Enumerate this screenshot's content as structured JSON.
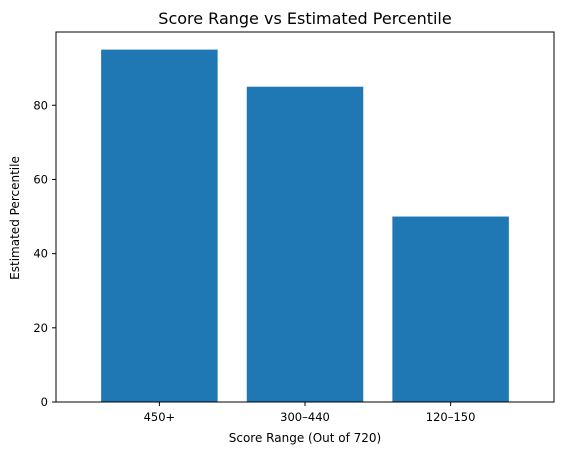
{
  "chart_data": {
    "type": "bar",
    "title": "Score Range vs Estimated Percentile",
    "xlabel": "Score Range (Out of 720)",
    "ylabel": "Estimated Percentile",
    "categories": [
      "450+",
      "300–440",
      "120–150"
    ],
    "values": [
      95,
      85,
      50
    ],
    "ylim": [
      0,
      99.75
    ],
    "yticks": [
      0,
      20,
      40,
      60,
      80
    ],
    "grid": false,
    "legend": "none",
    "bar_color": "#1f77b4"
  }
}
